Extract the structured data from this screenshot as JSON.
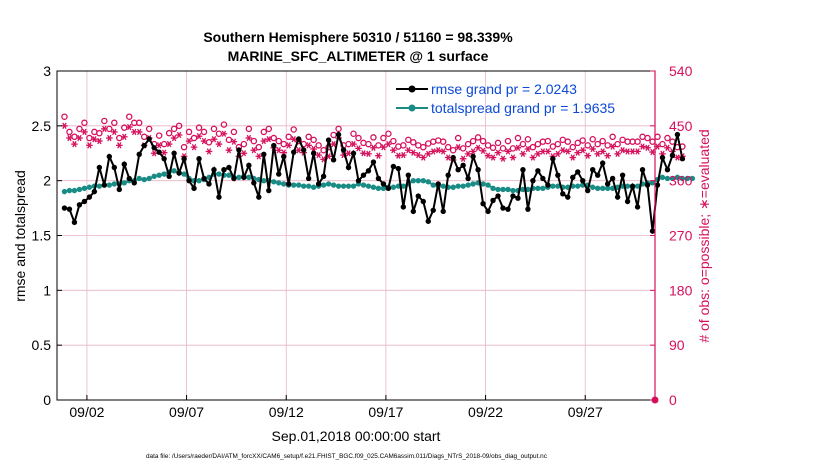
{
  "chart_data": {
    "type": "line",
    "title_line1": "Southern Hemisphere 50310 / 51160 = 98.339%",
    "title_line2": "MARINE_SFC_ALTIMETER @ 1 surface",
    "xlabel": "Sep.01,2018 00:00:00 start",
    "ylabel_left": "rmse and totalspread",
    "ylabel_right": "# of obs: o=possible; ∗=evaluated",
    "footnote": "data file: /Users/raeder/DAI/ATM_forcXX/CAM6_setup/f.e21.FHIST_BGC.f09_025.CAM6assim.011/Diags_NTrS_2018-09/obs_diag_output.nc",
    "xlim": [
      0.5,
      30.5
    ],
    "ylim_left": [
      0,
      3
    ],
    "ylim_right": [
      0,
      540
    ],
    "yticks_left": [
      0,
      0.5,
      1,
      1.5,
      2,
      2.5,
      3
    ],
    "yticks_left_labels": [
      "0",
      "0.5",
      "1",
      "1.5",
      "2",
      "2.5",
      "3"
    ],
    "yticks_right": [
      0,
      90,
      180,
      270,
      360,
      450,
      540
    ],
    "yticks_right_labels": [
      "0",
      "90",
      "180",
      "270",
      "360",
      "450",
      "540"
    ],
    "xticks": [
      2,
      7,
      12,
      17,
      22,
      27
    ],
    "xtick_labels": [
      "09/02",
      "09/07",
      "09/12",
      "09/17",
      "09/22",
      "09/27"
    ],
    "grid": true,
    "legend_location": "top-right",
    "colors": {
      "rmse": "#000000",
      "totalspread": "#198c86",
      "obs": "#d6105c",
      "legend_text": "#0b49d6",
      "grid": "#e8b4c4"
    },
    "series": [
      {
        "name": "rmse grand pr = 2.0243",
        "key": "rmse",
        "x0": 0.875,
        "dx": 0.25,
        "values": [
          1.75,
          1.74,
          1.62,
          1.78,
          1.81,
          1.85,
          1.9,
          2.12,
          1.96,
          2.22,
          2.12,
          1.92,
          2.15,
          2.02,
          1.98,
          2.24,
          2.32,
          2.38,
          2.3,
          2.26,
          2.2,
          2.04,
          2.25,
          2.07,
          2.2,
          2.0,
          1.93,
          2.2,
          2.02,
          1.97,
          2.1,
          1.85,
          2.1,
          2.12,
          2.02,
          2.28,
          2.03,
          2.14,
          1.98,
          1.85,
          2.24,
          1.91,
          2.32,
          2.06,
          2.22,
          1.97,
          2.26,
          2.38,
          2.28,
          2.02,
          2.25,
          1.97,
          2.04,
          2.37,
          2.19,
          2.42,
          2.28,
          2.12,
          2.25,
          2.0,
          2.05,
          2.09,
          2.17,
          2.02,
          1.97,
          1.93,
          2.13,
          2.11,
          1.76,
          2.05,
          1.72,
          1.86,
          1.81,
          1.63,
          1.73,
          1.97,
          1.72,
          2.05,
          2.21,
          2.1,
          2.14,
          2.02,
          2.22,
          2.1,
          1.79,
          1.72,
          1.82,
          1.86,
          1.75,
          1.74,
          1.86,
          1.84,
          2.1,
          1.74,
          2.0,
          2.09,
          2.02,
          1.96,
          2.2,
          2.05,
          1.88,
          1.85,
          2.03,
          2.08,
          2.0,
          1.91,
          2.1,
          2.05,
          2.16,
          1.97,
          2.02,
          1.85,
          2.05,
          1.81,
          1.95,
          1.76,
          2.1,
          1.96,
          1.54,
          1.96,
          2.21,
          2.1,
          2.23,
          2.42,
          2.2
        ]
      },
      {
        "name": "totalspread grand pr = 1.9635",
        "key": "totalspread",
        "x0": 0.875,
        "dx": 0.25,
        "values": [
          1.9,
          1.91,
          1.91,
          1.92,
          1.93,
          1.94,
          1.95,
          1.95,
          1.96,
          1.96,
          1.97,
          1.97,
          1.98,
          2.0,
          2.0,
          2.02,
          2.01,
          2.02,
          2.04,
          2.05,
          2.06,
          2.08,
          2.09,
          2.07,
          2.06,
          2.02,
          2.0,
          2.0,
          2.01,
          2.03,
          2.06,
          2.06,
          2.05,
          2.05,
          2.03,
          2.03,
          2.04,
          2.03,
          2.02,
          2.01,
          2.0,
          2.0,
          1.99,
          1.98,
          1.97,
          1.96,
          1.96,
          1.96,
          1.95,
          1.95,
          1.94,
          1.95,
          1.96,
          1.97,
          1.96,
          1.95,
          1.95,
          1.95,
          1.95,
          1.97,
          1.96,
          1.95,
          1.94,
          1.93,
          1.93,
          1.94,
          1.94,
          1.95,
          1.95,
          1.97,
          2.0,
          2.0,
          2.0,
          1.99,
          1.96,
          1.95,
          1.95,
          1.94,
          1.94,
          1.95,
          1.95,
          1.96,
          1.97,
          1.98,
          1.97,
          1.96,
          1.93,
          1.92,
          1.92,
          1.92,
          1.91,
          1.91,
          1.92,
          1.92,
          1.93,
          1.93,
          1.93,
          1.94,
          1.95,
          1.95,
          1.94,
          1.94,
          1.95,
          1.95,
          1.96,
          1.96,
          1.94,
          1.93,
          1.93,
          1.93,
          1.93,
          1.94,
          1.95,
          1.95,
          1.94,
          1.95,
          1.97,
          1.98,
          1.98,
          2.01,
          2.03,
          2.02,
          2.02,
          2.03,
          2.02,
          2.02,
          2.02
        ]
      },
      {
        "name": "possible",
        "key": "possible",
        "marker": "circle",
        "x0": 0.875,
        "dx": 0.25,
        "values": [
          465,
          440,
          432,
          445,
          455,
          430,
          440,
          438,
          458,
          445,
          455,
          430,
          447,
          465,
          455,
          455,
          432,
          445,
          420,
          434,
          420,
          438,
          445,
          450,
          415,
          440,
          430,
          447,
          440,
          423,
          445,
          437,
          452,
          427,
          440,
          415,
          420,
          445,
          425,
          415,
          440,
          445,
          430,
          425,
          420,
          432,
          444,
          425,
          420,
          432,
          427,
          418,
          410,
          415,
          435,
          445,
          418,
          420,
          437,
          430,
          422,
          420,
          431,
          418,
          430,
          437,
          425,
          416,
          418,
          427,
          423,
          418,
          415,
          421,
          424,
          426,
          424,
          415,
          410,
          430,
          413,
          420,
          425,
          431,
          425,
          418,
          414,
          422,
          413,
          425,
          413,
          430,
          420,
          428,
          415,
          420,
          424,
          425,
          416,
          420,
          427,
          424,
          415,
          422,
          426,
          418,
          428,
          420,
          425,
          418,
          432,
          420,
          427,
          424,
          424,
          424,
          432,
          430,
          424,
          432,
          420,
          430,
          424,
          415,
          416
        ]
      },
      {
        "name": "evaluated",
        "key": "evaluated",
        "marker": "asterisk",
        "x0": 0.875,
        "dx": 0.25,
        "values": [
          450,
          430,
          420,
          430,
          440,
          418,
          428,
          425,
          445,
          430,
          440,
          418,
          432,
          448,
          440,
          440,
          418,
          430,
          405,
          418,
          406,
          420,
          430,
          435,
          400,
          425,
          415,
          433,
          425,
          408,
          428,
          420,
          437,
          410,
          424,
          400,
          405,
          430,
          410,
          400,
          425,
          428,
          414,
          410,
          406,
          418,
          428,
          410,
          406,
          418,
          412,
          402,
          395,
          400,
          420,
          430,
          402,
          405,
          420,
          413,
          405,
          404,
          414,
          401,
          415,
          420,
          410,
          401,
          402,
          410,
          406,
          402,
          398,
          404,
          408,
          410,
          408,
          398,
          394,
          415,
          396,
          404,
          408,
          414,
          409,
          401,
          398,
          406,
          396,
          408,
          398,
          414,
          404,
          412,
          398,
          404,
          408,
          408,
          400,
          404,
          410,
          408,
          398,
          406,
          410,
          401,
          412,
          404,
          408,
          401,
          416,
          404,
          410,
          408,
          408,
          408,
          416,
          414,
          407,
          416,
          404,
          414,
          408,
          398,
          400
        ]
      }
    ],
    "extra_marker": {
      "x": 30.5,
      "y_right": 0
    }
  }
}
